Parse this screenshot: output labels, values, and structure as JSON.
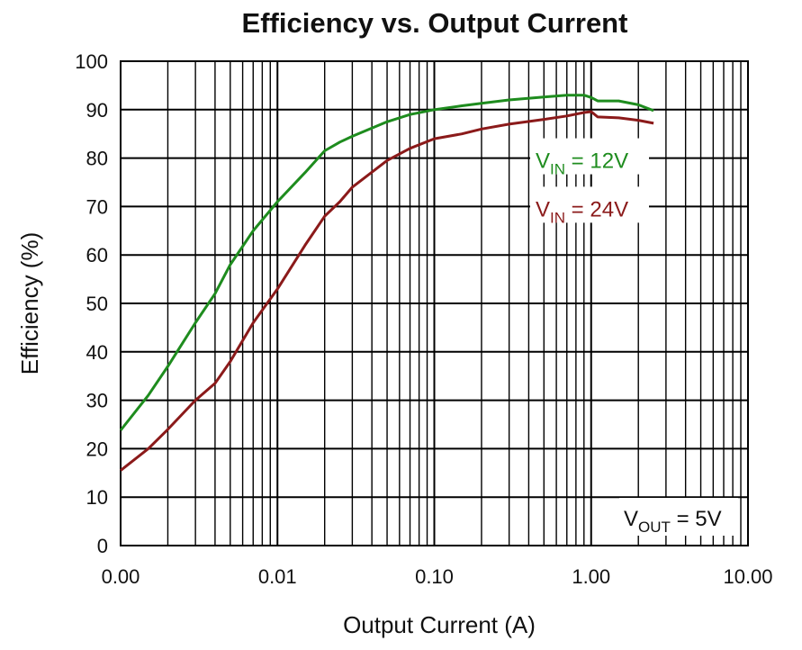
{
  "chart_data": {
    "type": "line",
    "title": "Efficiency  vs. Output Current",
    "xlabel": "Output Current (A)",
    "ylabel": "Efficiency (%)",
    "x_scale": "log",
    "xlim": [
      0.001,
      10
    ],
    "ylim": [
      0,
      100
    ],
    "grid": true,
    "x_ticks": [
      {
        "value": 0.001,
        "label": "0.00"
      },
      {
        "value": 0.01,
        "label": "0.01"
      },
      {
        "value": 0.1,
        "label": "0.10"
      },
      {
        "value": 1,
        "label": "1.00"
      },
      {
        "value": 10,
        "label": "10.00"
      }
    ],
    "y_ticks": [
      0,
      10,
      20,
      30,
      40,
      50,
      60,
      70,
      80,
      90,
      100
    ],
    "series": [
      {
        "name_main": "V",
        "name_sub": "IN",
        "name_rest": " = 12V",
        "color": "#1e8c1e",
        "points": [
          [
            0.001,
            23.8
          ],
          [
            0.0015,
            31
          ],
          [
            0.002,
            37
          ],
          [
            0.003,
            46
          ],
          [
            0.004,
            52
          ],
          [
            0.005,
            58
          ],
          [
            0.007,
            65
          ],
          [
            0.01,
            71
          ],
          [
            0.015,
            77
          ],
          [
            0.02,
            81.5
          ],
          [
            0.025,
            83.3
          ],
          [
            0.03,
            84.5
          ],
          [
            0.05,
            87.5
          ],
          [
            0.07,
            89
          ],
          [
            0.1,
            90
          ],
          [
            0.15,
            90.8
          ],
          [
            0.2,
            91.3
          ],
          [
            0.3,
            92
          ],
          [
            0.5,
            92.6
          ],
          [
            0.7,
            93
          ],
          [
            0.9,
            93
          ],
          [
            1.0,
            92.5
          ],
          [
            1.1,
            91.8
          ],
          [
            1.5,
            91.8
          ],
          [
            2.0,
            91
          ],
          [
            2.5,
            89.8
          ]
        ]
      },
      {
        "name_main": "V",
        "name_sub": "IN",
        "name_rest": " = 24V",
        "color": "#8b1a1a",
        "points": [
          [
            0.001,
            15.5
          ],
          [
            0.0015,
            20
          ],
          [
            0.002,
            24
          ],
          [
            0.003,
            30
          ],
          [
            0.004,
            33.5
          ],
          [
            0.005,
            38
          ],
          [
            0.007,
            46
          ],
          [
            0.01,
            53
          ],
          [
            0.015,
            62
          ],
          [
            0.02,
            68
          ],
          [
            0.025,
            71
          ],
          [
            0.03,
            74
          ],
          [
            0.05,
            79.5
          ],
          [
            0.07,
            82
          ],
          [
            0.1,
            84
          ],
          [
            0.15,
            85
          ],
          [
            0.2,
            86
          ],
          [
            0.3,
            87
          ],
          [
            0.5,
            88
          ],
          [
            0.7,
            88.7
          ],
          [
            0.9,
            89.4
          ],
          [
            1.0,
            89.6
          ],
          [
            1.1,
            88.5
          ],
          [
            1.5,
            88.3
          ],
          [
            2.0,
            87.8
          ],
          [
            2.5,
            87.2
          ]
        ]
      }
    ],
    "annotation": {
      "main": "V",
      "sub": "OUT",
      "rest": " = 5V"
    }
  }
}
